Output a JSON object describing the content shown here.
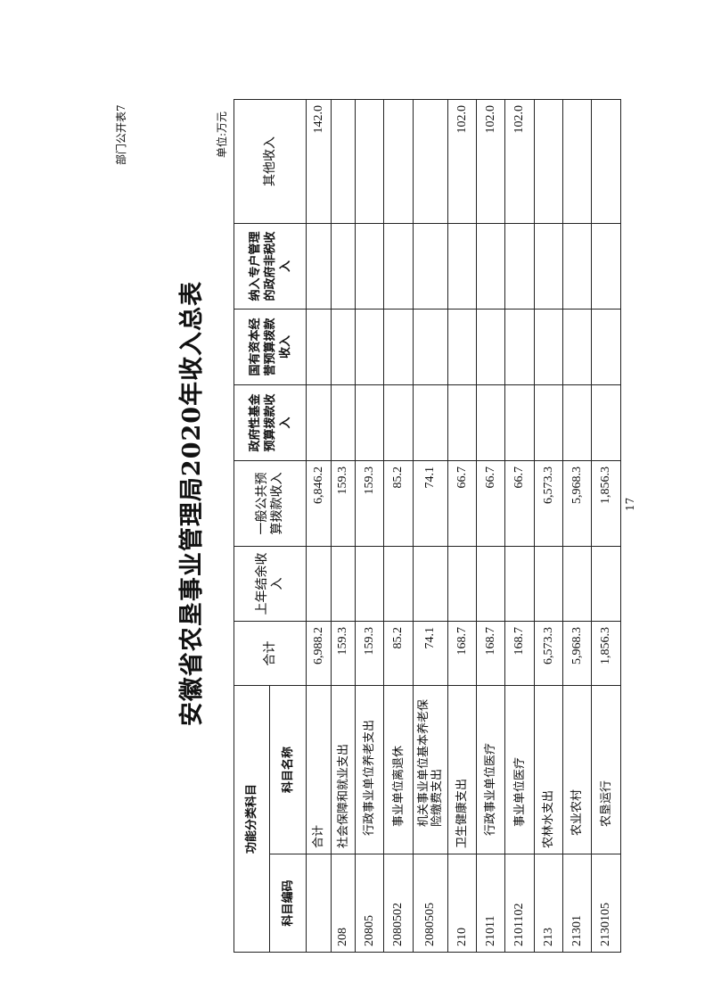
{
  "form_number": "部门公开表7",
  "title": "安徽省农垦事业管理局2020年收入总表",
  "unit": "单位:万元",
  "page_number": "17",
  "table": {
    "group_header": "功能分类科目",
    "headers": {
      "code": "科目编码",
      "name": "科目名称",
      "total": "合计",
      "carryover": "上年结余收入",
      "general_budget": "一般公共预算拨款收入",
      "gov_fund": "政府性基金预算拨款收入",
      "state_capital": "国有资本经营预算拨款收入",
      "special_account": "纳入专户管理的政府非税收入",
      "other": "其他收入"
    },
    "rows": [
      {
        "code": "",
        "name": "合计",
        "level": 0,
        "total": "6,988.2",
        "carryover": "",
        "general_budget": "6,846.2",
        "gov_fund": "",
        "state_capital": "",
        "special_account": "",
        "other": "142.0"
      },
      {
        "code": "208",
        "name": "社会保障和就业支出",
        "level": 0,
        "total": "159.3",
        "carryover": "",
        "general_budget": "159.3",
        "gov_fund": "",
        "state_capital": "",
        "special_account": "",
        "other": ""
      },
      {
        "code": "20805",
        "name": "行政事业单位养老支出",
        "level": 1,
        "total": "159.3",
        "carryover": "",
        "general_budget": "159.3",
        "gov_fund": "",
        "state_capital": "",
        "special_account": "",
        "other": ""
      },
      {
        "code": "2080502",
        "name": "事业单位离退休",
        "level": 2,
        "total": "85.2",
        "carryover": "",
        "general_budget": "85.2",
        "gov_fund": "",
        "state_capital": "",
        "special_account": "",
        "other": ""
      },
      {
        "code": "2080505",
        "name": "机关事业单位基本养老保险缴费支出",
        "level": 2,
        "total": "74.1",
        "carryover": "",
        "general_budget": "74.1",
        "gov_fund": "",
        "state_capital": "",
        "special_account": "",
        "other": ""
      },
      {
        "code": "210",
        "name": "卫生健康支出",
        "level": 0,
        "total": "168.7",
        "carryover": "",
        "general_budget": "66.7",
        "gov_fund": "",
        "state_capital": "",
        "special_account": "",
        "other": "102.0"
      },
      {
        "code": "21011",
        "name": "行政事业单位医疗",
        "level": 1,
        "total": "168.7",
        "carryover": "",
        "general_budget": "66.7",
        "gov_fund": "",
        "state_capital": "",
        "special_account": "",
        "other": "102.0"
      },
      {
        "code": "2101102",
        "name": "事业单位医疗",
        "level": 2,
        "total": "168.7",
        "carryover": "",
        "general_budget": "66.7",
        "gov_fund": "",
        "state_capital": "",
        "special_account": "",
        "other": "102.0"
      },
      {
        "code": "213",
        "name": "农林水支出",
        "level": 0,
        "total": "6,573.3",
        "carryover": "",
        "general_budget": "6,573.3",
        "gov_fund": "",
        "state_capital": "",
        "special_account": "",
        "other": ""
      },
      {
        "code": "21301",
        "name": "农业农村",
        "level": 1,
        "total": "5,968.3",
        "carryover": "",
        "general_budget": "5,968.3",
        "gov_fund": "",
        "state_capital": "",
        "special_account": "",
        "other": ""
      },
      {
        "code": "2130105",
        "name": "农垦运行",
        "level": 2,
        "total": "1,856.3",
        "carryover": "",
        "general_budget": "1,856.3",
        "gov_fund": "",
        "state_capital": "",
        "special_account": "",
        "other": ""
      }
    ]
  }
}
